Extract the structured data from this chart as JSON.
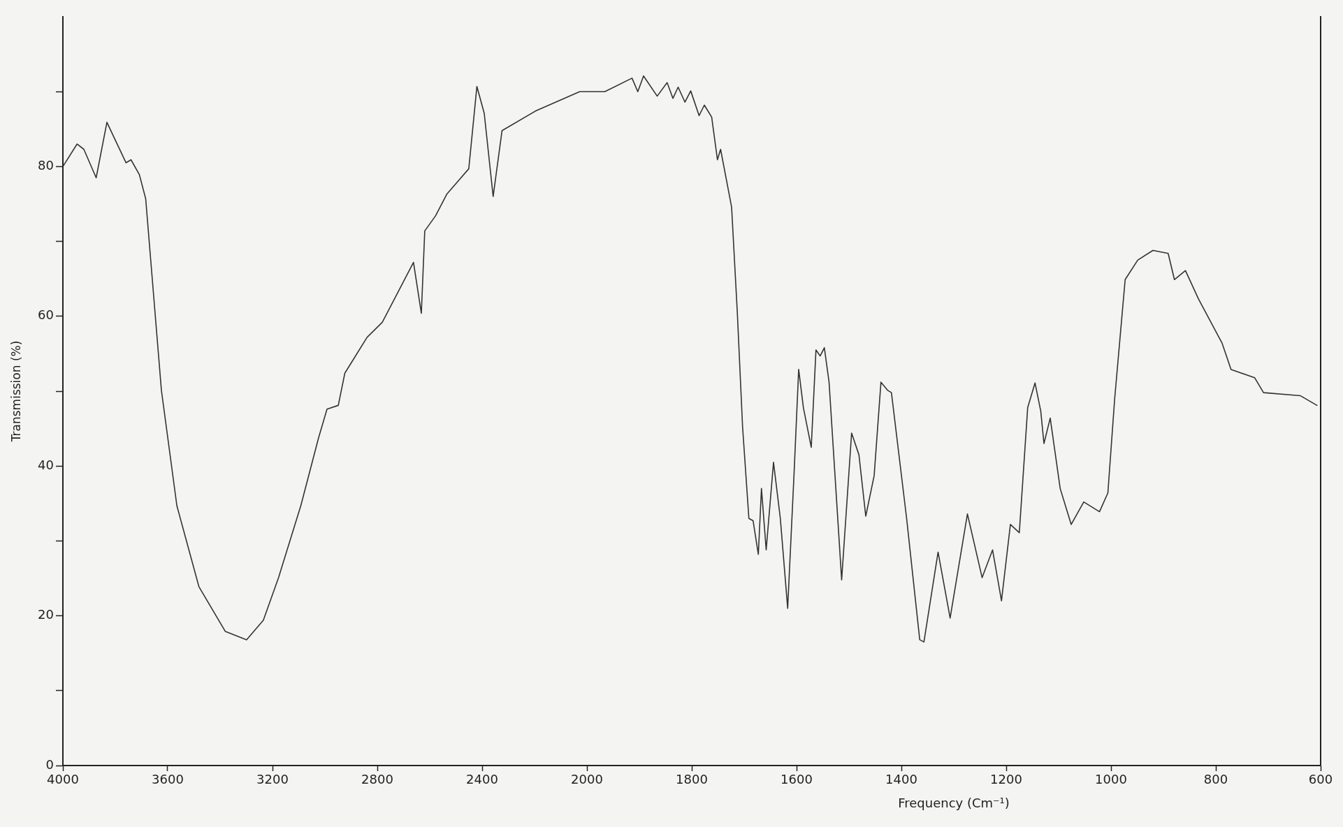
{
  "chart_data": [
    {
      "type": "line",
      "ylabel": "Transmission (%)",
      "x": [
        4000,
        3946,
        3920,
        3873,
        3832,
        3759,
        3740,
        3708,
        3684,
        3624,
        3565,
        3481,
        3380,
        3299,
        3235,
        3177,
        3092,
        3024,
        2992,
        2949,
        2924,
        2839,
        2781,
        2662,
        2632,
        2619,
        2578,
        2535,
        2451,
        2420,
        2392,
        2358,
        2324,
        2197,
        2028,
        2000
      ],
      "series": [
        {
          "color": "#333333",
          "values": [
            80.0,
            83.0,
            82.3,
            78.5,
            85.9,
            80.5,
            80.9,
            78.9,
            75.7,
            50.1,
            34.7,
            23.9,
            17.9,
            16.8,
            19.4,
            25.1,
            34.7,
            43.8,
            47.6,
            48.1,
            52.4,
            57.2,
            59.2,
            67.2,
            60.4,
            71.4,
            73.4,
            76.3,
            79.7,
            90.7,
            87.1,
            76.0,
            84.8,
            87.4,
            90.0,
            90.0
          ]
        }
      ],
      "xlim": [
        4000,
        2000
      ],
      "xticks": [
        4000,
        3600,
        3200,
        2800,
        2400,
        2000
      ],
      "ylim": [
        0,
        100
      ],
      "yticks": [
        0,
        {
          "value": 10,
          "label": null
        },
        20,
        {
          "value": 30,
          "label": null
        },
        40,
        {
          "value": 50,
          "label": null
        },
        60,
        {
          "value": 70,
          "label": null
        },
        80,
        {
          "value": 90,
          "label": null
        }
      ],
      "grid": false,
      "legend": false,
      "marker": "none",
      "line_style": "solid"
    },
    {
      "type": "line",
      "xlabel": "Frequency (Cm⁻¹)",
      "x": [
        2000,
        1966,
        1914,
        1903,
        1892,
        1866,
        1847,
        1836,
        1826,
        1813,
        1802,
        1786,
        1776,
        1762,
        1751,
        1745,
        1724,
        1713,
        1703,
        1691,
        1683,
        1673,
        1667,
        1658,
        1644,
        1631,
        1617,
        1605,
        1596,
        1587,
        1572,
        1563,
        1555,
        1547,
        1538,
        1514,
        1495,
        1481,
        1468,
        1452,
        1439,
        1426,
        1419,
        1390,
        1365,
        1357,
        1330,
        1307,
        1274,
        1246,
        1226,
        1209,
        1192,
        1175,
        1159,
        1145,
        1134,
        1128,
        1116,
        1097,
        1076,
        1052,
        1022,
        1006,
        993,
        973,
        949,
        920,
        891,
        879,
        858,
        833,
        788,
        771,
        726,
        709,
        639,
        607
      ],
      "series": [
        {
          "color": "#333333",
          "values": [
            90.0,
            90.0,
            91.8,
            90.0,
            92.1,
            89.4,
            91.2,
            89.1,
            90.6,
            88.6,
            90.1,
            86.8,
            88.2,
            86.6,
            80.9,
            82.3,
            74.6,
            60.4,
            45.2,
            33.0,
            32.7,
            28.2,
            37.0,
            28.8,
            40.5,
            33.0,
            21.0,
            38.7,
            52.9,
            47.8,
            42.5,
            55.5,
            54.7,
            55.8,
            51.2,
            24.8,
            44.4,
            41.5,
            33.3,
            38.7,
            51.2,
            50.1,
            49.8,
            33.0,
            16.8,
            16.5,
            28.5,
            19.7,
            33.6,
            25.1,
            28.8,
            22.0,
            32.2,
            31.1,
            47.8,
            51.1,
            47.3,
            43.0,
            46.4,
            37.0,
            32.2,
            35.2,
            33.9,
            36.4,
            49.0,
            64.9,
            67.5,
            68.8,
            68.4,
            64.9,
            66.1,
            62.3,
            56.4,
            52.9,
            51.8,
            49.8,
            49.4,
            48.1
          ]
        }
      ],
      "xlim": [
        2000,
        600
      ],
      "xticks": [
        1800,
        1600,
        1400,
        1200,
        1000,
        800,
        600
      ],
      "ylim": [
        0,
        100
      ],
      "tick_labels": "x",
      "grid": false,
      "legend": false,
      "marker": "none",
      "line_style": "solid"
    }
  ]
}
